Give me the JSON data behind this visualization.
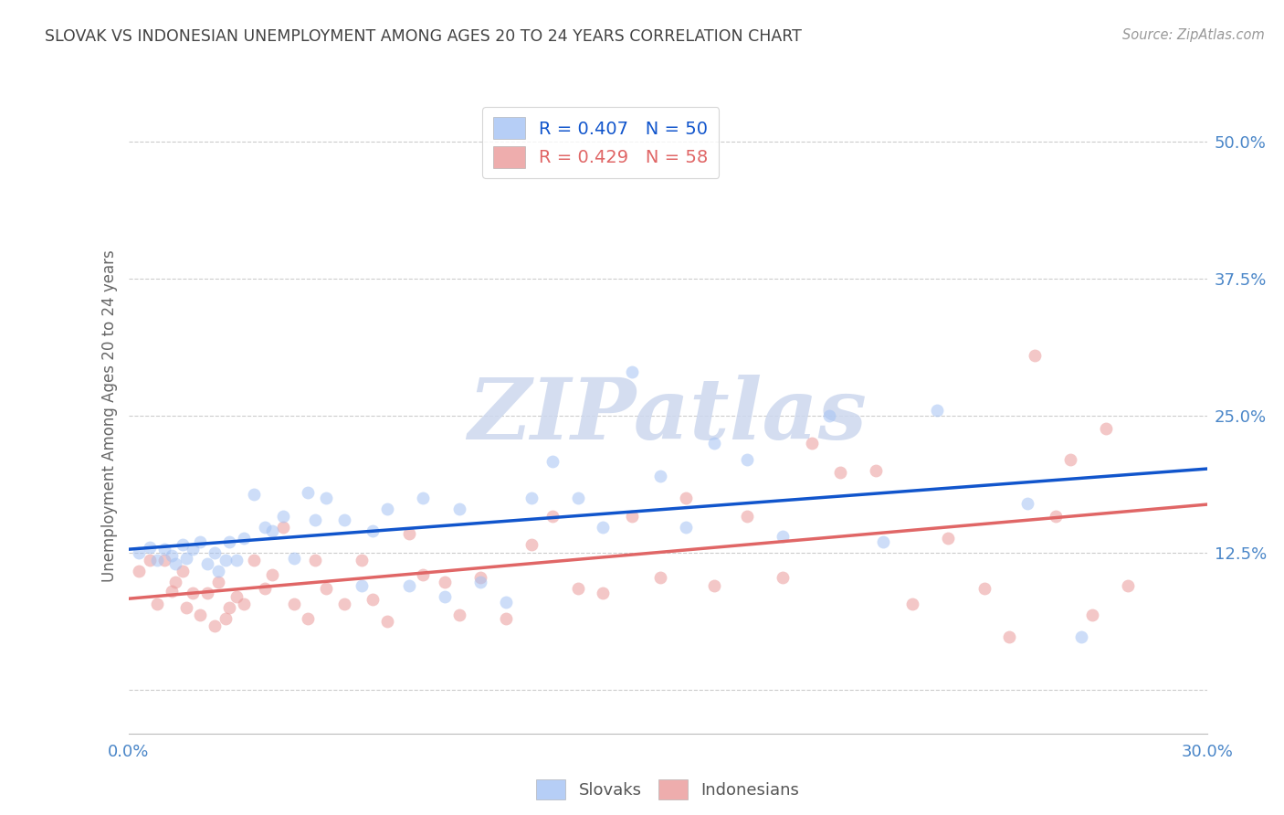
{
  "title": "SLOVAK VS INDONESIAN UNEMPLOYMENT AMONG AGES 20 TO 24 YEARS CORRELATION CHART",
  "source": "Source: ZipAtlas.com",
  "ylabel": "Unemployment Among Ages 20 to 24 years",
  "xlim": [
    0.0,
    0.3
  ],
  "ylim": [
    -0.04,
    0.54
  ],
  "xticks": [
    0.0,
    0.05,
    0.1,
    0.15,
    0.2,
    0.25,
    0.3
  ],
  "xticklabels": [
    "0.0%",
    "",
    "",
    "",
    "",
    "",
    "30.0%"
  ],
  "ytick_positions": [
    0.0,
    0.125,
    0.25,
    0.375,
    0.5
  ],
  "yticklabels": [
    "",
    "12.5%",
    "25.0%",
    "37.5%",
    "50.0%"
  ],
  "slovak_color": "#a4c2f4",
  "indonesian_color": "#ea9999",
  "slovak_line_color": "#1155cc",
  "indonesian_line_color": "#e06666",
  "legend_text_slovak": "R = 0.407   N = 50",
  "legend_text_indonesian": "R = 0.429   N = 58",
  "slovak_x": [
    0.003,
    0.006,
    0.008,
    0.01,
    0.012,
    0.013,
    0.015,
    0.016,
    0.018,
    0.02,
    0.022,
    0.024,
    0.025,
    0.027,
    0.028,
    0.03,
    0.032,
    0.035,
    0.038,
    0.04,
    0.043,
    0.046,
    0.05,
    0.052,
    0.055,
    0.06,
    0.065,
    0.068,
    0.072,
    0.078,
    0.082,
    0.088,
    0.092,
    0.098,
    0.105,
    0.112,
    0.118,
    0.125,
    0.132,
    0.14,
    0.148,
    0.155,
    0.163,
    0.172,
    0.182,
    0.195,
    0.21,
    0.225,
    0.25,
    0.265
  ],
  "slovak_y": [
    0.125,
    0.13,
    0.118,
    0.128,
    0.122,
    0.115,
    0.132,
    0.12,
    0.128,
    0.135,
    0.115,
    0.125,
    0.108,
    0.118,
    0.135,
    0.118,
    0.138,
    0.178,
    0.148,
    0.145,
    0.158,
    0.12,
    0.18,
    0.155,
    0.175,
    0.155,
    0.095,
    0.145,
    0.165,
    0.095,
    0.175,
    0.085,
    0.165,
    0.098,
    0.08,
    0.175,
    0.208,
    0.175,
    0.148,
    0.29,
    0.195,
    0.148,
    0.225,
    0.21,
    0.14,
    0.25,
    0.135,
    0.255,
    0.17,
    0.048
  ],
  "indonesian_x": [
    0.003,
    0.006,
    0.008,
    0.01,
    0.012,
    0.013,
    0.015,
    0.016,
    0.018,
    0.02,
    0.022,
    0.024,
    0.025,
    0.027,
    0.028,
    0.03,
    0.032,
    0.035,
    0.038,
    0.04,
    0.043,
    0.046,
    0.05,
    0.052,
    0.055,
    0.06,
    0.065,
    0.068,
    0.072,
    0.078,
    0.082,
    0.088,
    0.092,
    0.098,
    0.105,
    0.112,
    0.118,
    0.125,
    0.132,
    0.14,
    0.148,
    0.155,
    0.163,
    0.172,
    0.182,
    0.19,
    0.198,
    0.208,
    0.218,
    0.228,
    0.238,
    0.245,
    0.252,
    0.258,
    0.262,
    0.268,
    0.272,
    0.278
  ],
  "indonesian_y": [
    0.108,
    0.118,
    0.078,
    0.118,
    0.09,
    0.098,
    0.108,
    0.075,
    0.088,
    0.068,
    0.088,
    0.058,
    0.098,
    0.065,
    0.075,
    0.085,
    0.078,
    0.118,
    0.092,
    0.105,
    0.148,
    0.078,
    0.065,
    0.118,
    0.092,
    0.078,
    0.118,
    0.082,
    0.062,
    0.142,
    0.105,
    0.098,
    0.068,
    0.102,
    0.065,
    0.132,
    0.158,
    0.092,
    0.088,
    0.158,
    0.102,
    0.175,
    0.095,
    0.158,
    0.102,
    0.225,
    0.198,
    0.2,
    0.078,
    0.138,
    0.092,
    0.048,
    0.305,
    0.158,
    0.21,
    0.068,
    0.238,
    0.095
  ],
  "marker_size": 100,
  "marker_alpha": 0.55,
  "watermark_text": "ZIPatlas",
  "background_color": "#ffffff",
  "grid_color": "#cccccc",
  "title_color": "#434343",
  "source_color": "#999999",
  "axis_label_color": "#666666",
  "tick_label_color": "#4a86c8"
}
